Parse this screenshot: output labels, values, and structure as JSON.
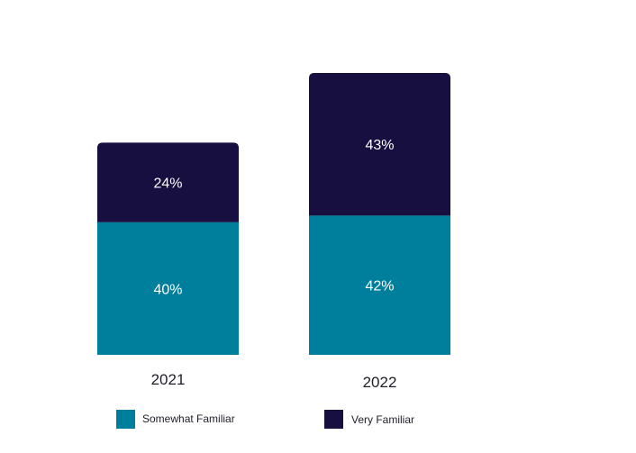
{
  "colors": {
    "somewhat": "#007f9c",
    "very": "#160f40",
    "text": "#1e1e2a"
  },
  "chart_data": {
    "type": "bar",
    "stacked": true,
    "categories": [
      "2021",
      "2022"
    ],
    "series": [
      {
        "name": "Somewhat Familiar",
        "values": [
          40,
          42
        ],
        "labels": [
          "40%",
          "42%"
        ],
        "color": "#007f9c"
      },
      {
        "name": "Very Familiar",
        "values": [
          24,
          43
        ],
        "labels": [
          "24%",
          "43%"
        ],
        "color": "#160f40"
      }
    ],
    "title": "",
    "xlabel": "",
    "ylabel": "",
    "ylim": [
      0,
      85
    ],
    "grid": false,
    "legend_position": "bottom"
  }
}
